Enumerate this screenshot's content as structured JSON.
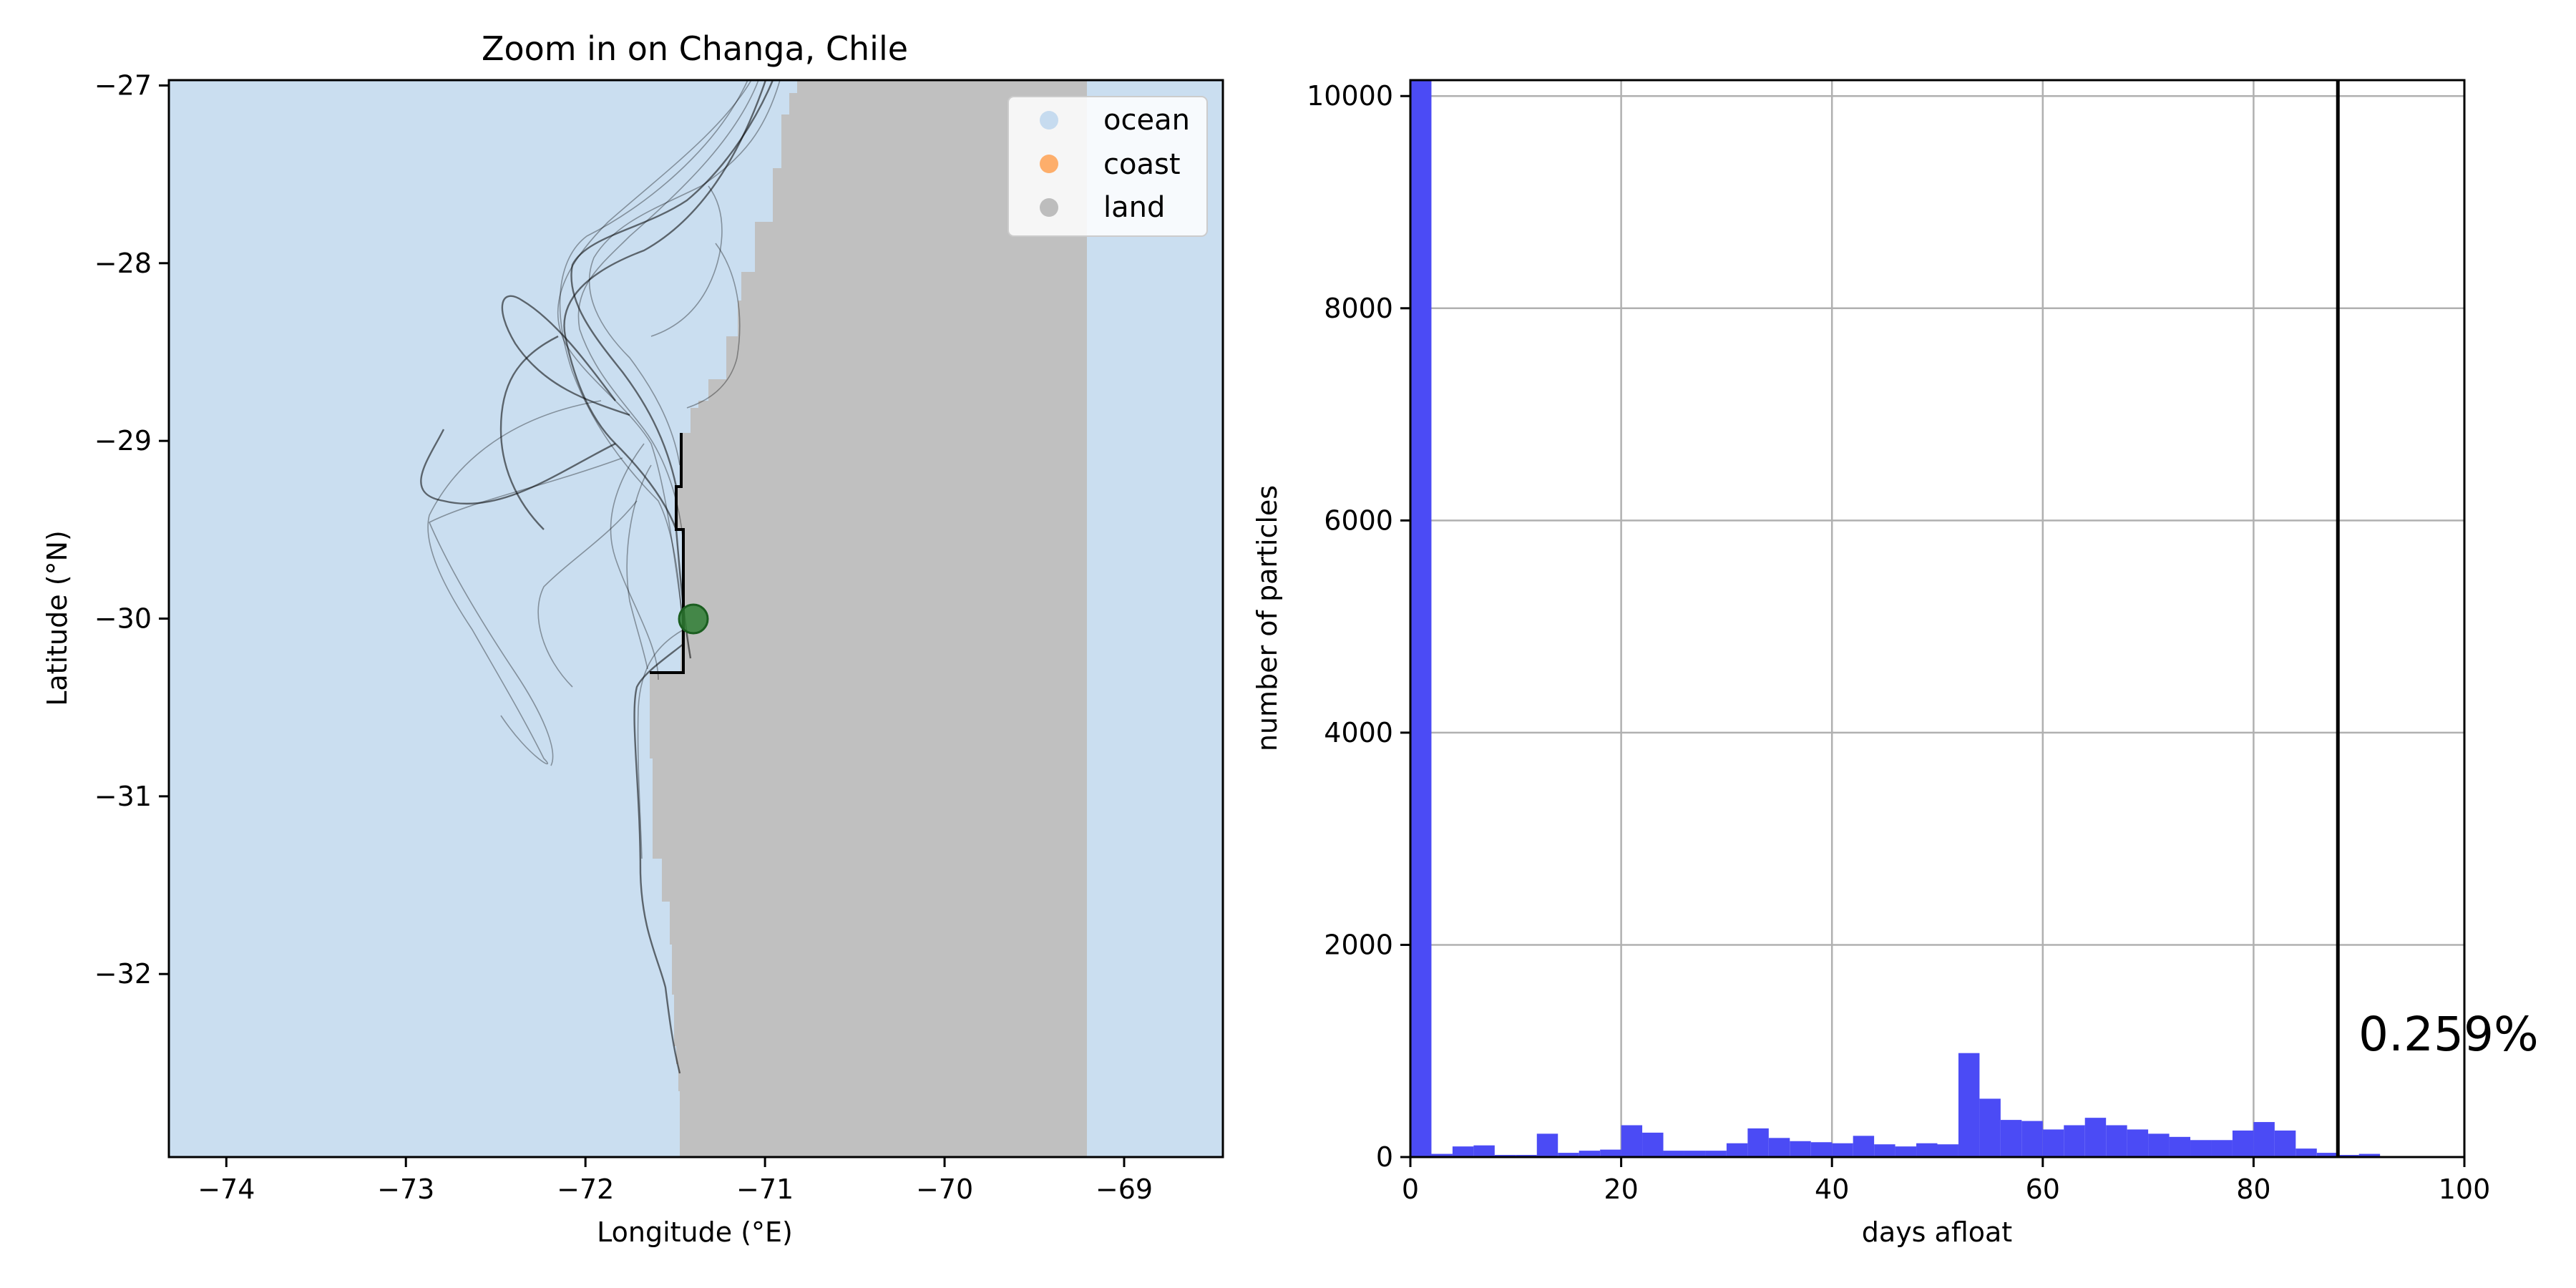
{
  "chart_data": [
    {
      "type": "map",
      "title": "Zoom in on Changa, Chile",
      "xlabel": "Longitude (°E)",
      "ylabel": "Latitude (°N)",
      "xlim": [
        -74.32,
        -68.45
      ],
      "ylim": [
        -33.03,
        -26.97
      ],
      "xticks": [
        -74,
        -73,
        -72,
        -71,
        -70,
        -69
      ],
      "xtick_labels": [
        "−74",
        "−73",
        "−72",
        "−71",
        "−70",
        "−69"
      ],
      "yticks": [
        -27,
        -28,
        -29,
        -30,
        -31,
        -32
      ],
      "ytick_labels": [
        "−27",
        "−28",
        "−29",
        "−30",
        "−31",
        "−32"
      ],
      "legend": {
        "placement": "upper right",
        "entries": [
          {
            "label": "ocean",
            "color": "#c6dbef"
          },
          {
            "label": "coast",
            "color": "#fdae6b"
          },
          {
            "label": "land",
            "color": "#bdbdbd"
          }
        ]
      },
      "release_site": {
        "lon": -71.35,
        "lat": -29.96,
        "color": "#2e7d32"
      },
      "land_coast_lon_east_edge": -69.08
    },
    {
      "type": "bar",
      "xlabel": "days afloat",
      "ylabel": "number of particles",
      "xlim": [
        0,
        100
      ],
      "ylim": [
        0,
        10150
      ],
      "xticks": [
        0,
        20,
        40,
        60,
        80,
        100
      ],
      "yticks": [
        0,
        2000,
        4000,
        6000,
        8000,
        10000
      ],
      "grid": true,
      "bar_color": "#4b4bf5",
      "bin_width": 2,
      "bin_starts": [
        0,
        2,
        4,
        6,
        8,
        10,
        12,
        14,
        16,
        18,
        20,
        22,
        24,
        26,
        28,
        30,
        32,
        34,
        36,
        38,
        40,
        42,
        44,
        46,
        48,
        50,
        52,
        54,
        56,
        58,
        60,
        62,
        64,
        66,
        68,
        70,
        72,
        74,
        76,
        78,
        80,
        82,
        84,
        86,
        88,
        90
      ],
      "values": [
        10150,
        30,
        100,
        110,
        20,
        20,
        220,
        40,
        60,
        70,
        300,
        230,
        60,
        60,
        60,
        130,
        270,
        180,
        150,
        140,
        130,
        200,
        120,
        100,
        130,
        120,
        980,
        550,
        350,
        340,
        260,
        300,
        370,
        300,
        260,
        220,
        190,
        160,
        160,
        250,
        330,
        250,
        80,
        40,
        20,
        30
      ],
      "vline_x": 88,
      "annotation": "0.259%"
    }
  ]
}
